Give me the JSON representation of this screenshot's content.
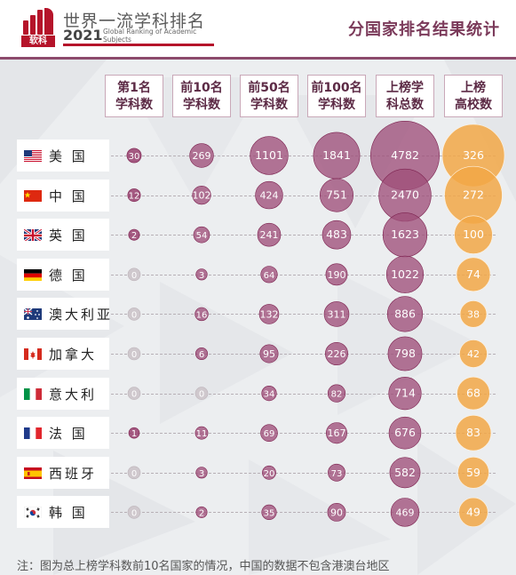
{
  "header": {
    "logo_text": "软科",
    "title": "世界一流学科排名",
    "year": "2021",
    "subtitle": "Global Ranking of Academic Subjects",
    "right_title": "分国家排名结果统计"
  },
  "colors": {
    "brand": "#b5142a",
    "purple_dark": "#8f2f62",
    "purple_mid": "#9f4f7a",
    "orange": "#f2a746",
    "zero_grey": "#cfc8cd"
  },
  "chart_data": {
    "type": "table",
    "columns": [
      {
        "key": "top1",
        "line1": "第1名",
        "line2": "学科数"
      },
      {
        "key": "top10",
        "line1": "前10名",
        "line2": "学科数"
      },
      {
        "key": "top50",
        "line1": "前50名",
        "line2": "学科数"
      },
      {
        "key": "top100",
        "line1": "前100名",
        "line2": "学科数"
      },
      {
        "key": "total",
        "line1": "上榜学",
        "line2": "科总数"
      },
      {
        "key": "universities",
        "line1": "上榜",
        "line2": "高校数"
      }
    ],
    "rows": [
      {
        "country": "美  国",
        "flag": "us-flag-icon",
        "values": [
          30,
          269,
          1101,
          1841,
          4782,
          326
        ]
      },
      {
        "country": "中  国",
        "flag": "cn-flag-icon",
        "values": [
          12,
          102,
          424,
          751,
          2470,
          272
        ]
      },
      {
        "country": "英  国",
        "flag": "gb-flag-icon",
        "values": [
          2,
          54,
          241,
          483,
          1623,
          100
        ]
      },
      {
        "country": "德  国",
        "flag": "de-flag-icon",
        "values": [
          0,
          3,
          64,
          190,
          1022,
          74
        ]
      },
      {
        "country": "澳大利亚",
        "flag": "au-flag-icon",
        "values": [
          0,
          16,
          132,
          311,
          886,
          38
        ]
      },
      {
        "country": "加拿大",
        "flag": "ca-flag-icon",
        "values": [
          0,
          6,
          95,
          226,
          798,
          42
        ]
      },
      {
        "country": "意大利",
        "flag": "it-flag-icon",
        "values": [
          0,
          0,
          34,
          82,
          714,
          68
        ]
      },
      {
        "country": "法  国",
        "flag": "fr-flag-icon",
        "values": [
          1,
          11,
          69,
          167,
          676,
          83
        ]
      },
      {
        "country": "西班牙",
        "flag": "es-flag-icon",
        "values": [
          0,
          3,
          20,
          73,
          582,
          59
        ]
      },
      {
        "country": "韩  国",
        "flag": "kr-flag-icon",
        "values": [
          0,
          2,
          35,
          90,
          469,
          49
        ]
      }
    ]
  },
  "footnote": "注：图为总上榜学科数前10名国家的情况，中国的数据不包含港澳台地区"
}
